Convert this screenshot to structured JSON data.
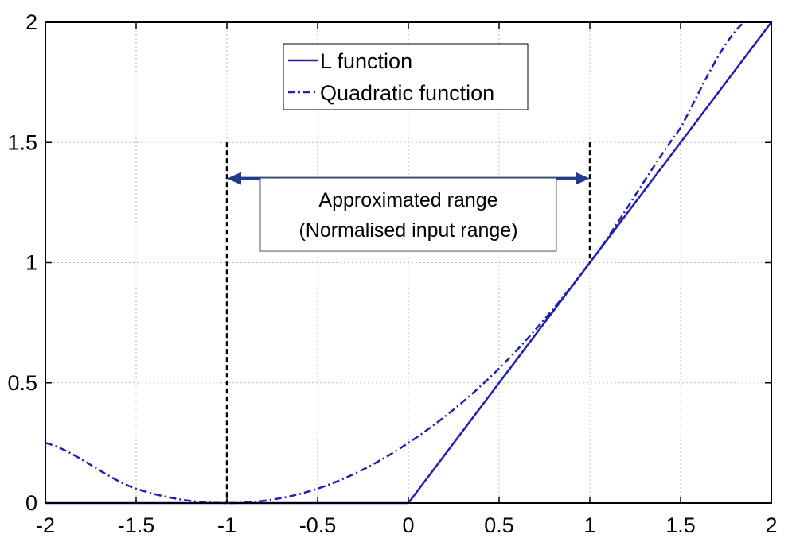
{
  "chart_data": {
    "type": "line",
    "xlim": [
      -2,
      2
    ],
    "ylim": [
      0,
      2
    ],
    "x_ticks": [
      -2,
      -1.5,
      -1,
      -0.5,
      0,
      0.5,
      1,
      1.5,
      2
    ],
    "y_ticks": [
      0,
      0.5,
      1,
      1.5,
      2
    ],
    "x_tick_labels": [
      "-2",
      "-1.5",
      "-1",
      "-0.5",
      "0",
      "0.5",
      "1",
      "1.5",
      "2"
    ],
    "y_tick_labels": [
      "0",
      "0.5",
      "1",
      "1.5",
      "2"
    ],
    "grid": true,
    "legend_position": "top-center",
    "series": [
      {
        "name": "L function",
        "style": "solid",
        "color": "#1f1fb4",
        "x": [
          -2,
          0,
          2
        ],
        "y": [
          0,
          0,
          2
        ]
      },
      {
        "name": "Quadratic function",
        "style": "dash-dot",
        "color": "#1f1fb4",
        "x": [
          -2,
          -1.5,
          -1.0,
          -0.5,
          0,
          0.5,
          1.0,
          1.5,
          1.85
        ],
        "y": [
          0.25,
          0.06,
          0.0,
          0.06,
          0.25,
          0.56,
          1.0,
          1.56,
          2.0
        ]
      }
    ],
    "annotation": {
      "lines": [
        "Approximated range",
        "(Normalised input range)"
      ],
      "range": [
        -1,
        1
      ],
      "marker_top": 1.5,
      "arrow_y": 1.35,
      "box_center": [
        0,
        1.17
      ]
    }
  },
  "colors": {
    "series": "#1f1fb4",
    "arrow": "#243c8c",
    "grid": "#bdbdbd",
    "marker": "#000000"
  }
}
